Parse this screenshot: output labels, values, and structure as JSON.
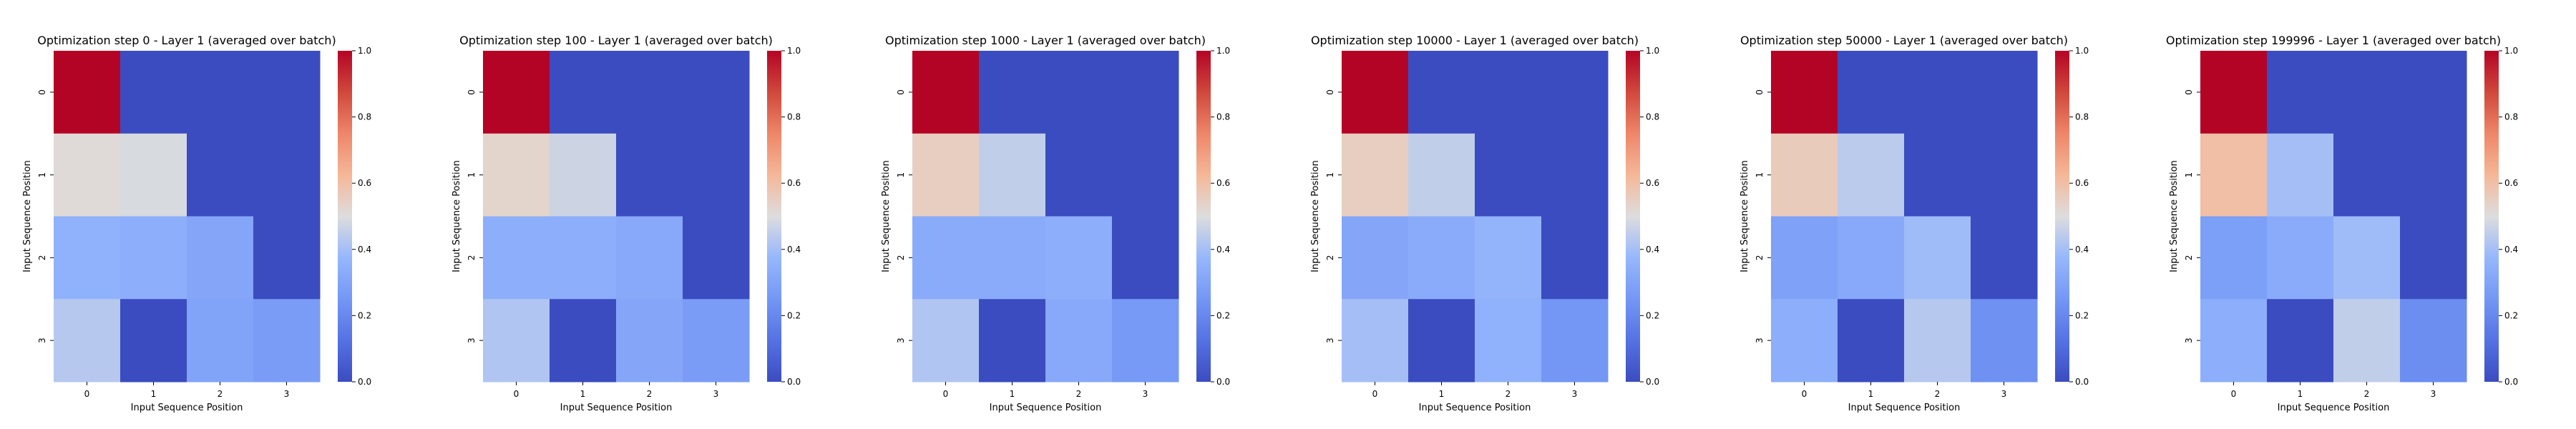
{
  "colorbar": {
    "ticks": [
      "0.0",
      "0.2",
      "0.4",
      "0.6",
      "0.8",
      "1.0"
    ]
  },
  "chart_data": [
    {
      "type": "heatmap",
      "title": "Optimization step 0 - Layer 1 (averaged over batch)",
      "xlabel": "Input Sequence Position",
      "ylabel": "Input Sequence Position",
      "x_ticks": [
        "0",
        "1",
        "2",
        "3"
      ],
      "y_ticks": [
        "0",
        "1",
        "2",
        "3"
      ],
      "vmin": 0,
      "vmax": 1,
      "colormap": "coolwarm",
      "values": [
        [
          1.0,
          0.0,
          0.0,
          0.0
        ],
        [
          0.51,
          0.49,
          0.0,
          0.0
        ],
        [
          0.35,
          0.34,
          0.31,
          0.0
        ],
        [
          0.43,
          0.0,
          0.3,
          0.27
        ]
      ]
    },
    {
      "type": "heatmap",
      "title": "Optimization step 100 - Layer 1 (averaged over batch)",
      "xlabel": "Input Sequence Position",
      "ylabel": "Input Sequence Position",
      "x_ticks": [
        "0",
        "1",
        "2",
        "3"
      ],
      "y_ticks": [
        "0",
        "1",
        "2",
        "3"
      ],
      "vmin": 0,
      "vmax": 1,
      "colormap": "coolwarm",
      "values": [
        [
          1.0,
          0.0,
          0.0,
          0.0
        ],
        [
          0.53,
          0.47,
          0.0,
          0.0
        ],
        [
          0.34,
          0.34,
          0.32,
          0.0
        ],
        [
          0.42,
          0.0,
          0.31,
          0.27
        ]
      ]
    },
    {
      "type": "heatmap",
      "title": "Optimization step 1000 - Layer 1 (averaged over batch)",
      "xlabel": "Input Sequence Position",
      "ylabel": "Input Sequence Position",
      "x_ticks": [
        "0",
        "1",
        "2",
        "3"
      ],
      "y_ticks": [
        "0",
        "1",
        "2",
        "3"
      ],
      "vmin": 0,
      "vmax": 1,
      "colormap": "coolwarm",
      "values": [
        [
          1.0,
          0.0,
          0.0,
          0.0
        ],
        [
          0.55,
          0.45,
          0.0,
          0.0
        ],
        [
          0.33,
          0.33,
          0.34,
          0.0
        ],
        [
          0.42,
          0.0,
          0.32,
          0.26
        ]
      ]
    },
    {
      "type": "heatmap",
      "title": "Optimization step 10000 - Layer 1 (averaged over batch)",
      "xlabel": "Input Sequence Position",
      "ylabel": "Input Sequence Position",
      "x_ticks": [
        "0",
        "1",
        "2",
        "3"
      ],
      "y_ticks": [
        "0",
        "1",
        "2",
        "3"
      ],
      "vmin": 0,
      "vmax": 1,
      "colormap": "coolwarm",
      "values": [
        [
          1.0,
          0.0,
          0.0,
          0.0
        ],
        [
          0.55,
          0.45,
          0.0,
          0.0
        ],
        [
          0.31,
          0.33,
          0.36,
          0.0
        ],
        [
          0.4,
          0.0,
          0.35,
          0.25
        ]
      ]
    },
    {
      "type": "heatmap",
      "title": "Optimization step 50000 - Layer 1 (averaged over batch)",
      "xlabel": "Input Sequence Position",
      "ylabel": "Input Sequence Position",
      "x_ticks": [
        "0",
        "1",
        "2",
        "3"
      ],
      "y_ticks": [
        "0",
        "1",
        "2",
        "3"
      ],
      "vmin": 0,
      "vmax": 1,
      "colormap": "coolwarm",
      "values": [
        [
          1.0,
          0.0,
          0.0,
          0.0
        ],
        [
          0.56,
          0.44,
          0.0,
          0.0
        ],
        [
          0.29,
          0.32,
          0.39,
          0.0
        ],
        [
          0.34,
          0.0,
          0.43,
          0.23
        ]
      ]
    },
    {
      "type": "heatmap",
      "title": "Optimization step 199996 - Layer 1 (averaged over batch)",
      "xlabel": "Input Sequence Position",
      "ylabel": "Input Sequence Position",
      "x_ticks": [
        "0",
        "1",
        "2",
        "3"
      ],
      "y_ticks": [
        "0",
        "1",
        "2",
        "3"
      ],
      "vmin": 0,
      "vmax": 1,
      "colormap": "coolwarm",
      "values": [
        [
          1.0,
          0.0,
          0.0,
          0.0
        ],
        [
          0.6,
          0.4,
          0.0,
          0.0
        ],
        [
          0.28,
          0.33,
          0.39,
          0.0
        ],
        [
          0.34,
          0.0,
          0.45,
          0.22
        ]
      ]
    }
  ]
}
